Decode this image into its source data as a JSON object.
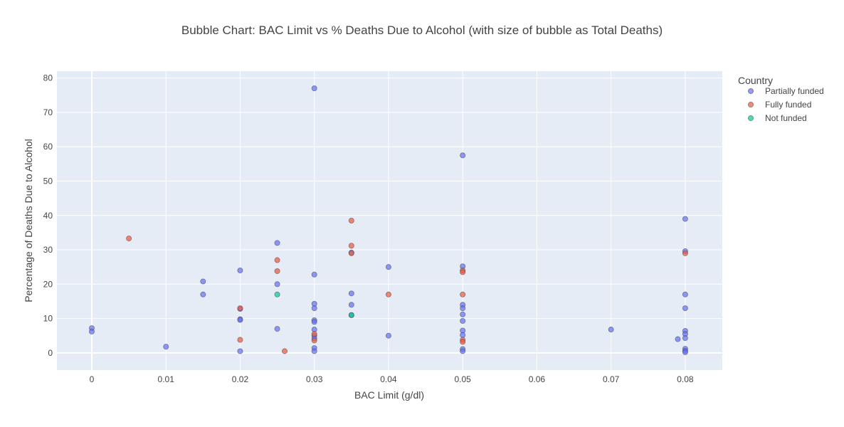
{
  "chart_data": {
    "type": "scatter",
    "title": "Bubble Chart: BAC Limit vs % Deaths Due to Alcohol (with size of bubble as Total Deaths)",
    "xlabel": "BAC Limit (g/dl)",
    "ylabel": "Percentage of Deaths Due to Alcohol",
    "xlim": [
      -0.0047,
      0.085
    ],
    "ylim": [
      -5,
      82
    ],
    "x_ticks": [
      0,
      0.01,
      0.02,
      0.03,
      0.04,
      0.05,
      0.06,
      0.07,
      0.08
    ],
    "x_tick_labels": [
      "0",
      "0.01",
      "0.02",
      "0.03",
      "0.04",
      "0.05",
      "0.06",
      "0.07",
      "0.08"
    ],
    "y_ticks": [
      0,
      10,
      20,
      30,
      40,
      50,
      60,
      70,
      80
    ],
    "y_tick_labels": [
      "0",
      "10",
      "20",
      "30",
      "40",
      "50",
      "60",
      "70",
      "80"
    ],
    "grid": true,
    "legend": {
      "title": "Country",
      "placement": "right"
    },
    "series": [
      {
        "name": "Partially funded",
        "color": "#636efa",
        "points": [
          [
            0,
            7.2
          ],
          [
            0,
            6.2
          ],
          [
            0.01,
            1.8
          ],
          [
            0.015,
            20.8
          ],
          [
            0.015,
            17.0
          ],
          [
            0.02,
            24.0
          ],
          [
            0.02,
            12.8
          ],
          [
            0.02,
            9.8
          ],
          [
            0.02,
            9.6
          ],
          [
            0.02,
            0.5
          ],
          [
            0.025,
            32.0
          ],
          [
            0.025,
            20.0
          ],
          [
            0.025,
            7.0
          ],
          [
            0.03,
            77.0
          ],
          [
            0.03,
            22.8
          ],
          [
            0.03,
            14.3
          ],
          [
            0.03,
            13.0
          ],
          [
            0.03,
            9.5
          ],
          [
            0.03,
            9.0
          ],
          [
            0.03,
            6.8
          ],
          [
            0.03,
            5.0
          ],
          [
            0.03,
            4.2
          ],
          [
            0.03,
            1.4
          ],
          [
            0.03,
            0.5
          ],
          [
            0.035,
            29.2
          ],
          [
            0.035,
            17.3
          ],
          [
            0.035,
            14.0
          ],
          [
            0.035,
            11.0
          ],
          [
            0.04,
            25.0
          ],
          [
            0.04,
            5.0
          ],
          [
            0.05,
            57.5
          ],
          [
            0.05,
            25.2
          ],
          [
            0.05,
            14.0
          ],
          [
            0.05,
            13.0
          ],
          [
            0.05,
            11.2
          ],
          [
            0.05,
            9.3
          ],
          [
            0.05,
            6.5
          ],
          [
            0.05,
            5.2
          ],
          [
            0.05,
            1.1
          ],
          [
            0.05,
            0.5
          ],
          [
            0.07,
            6.8
          ],
          [
            0.079,
            4.0
          ],
          [
            0.08,
            39.0
          ],
          [
            0.08,
            29.6
          ],
          [
            0.08,
            17.0
          ],
          [
            0.08,
            13.0
          ],
          [
            0.08,
            6.4
          ],
          [
            0.08,
            5.5
          ],
          [
            0.08,
            4.3
          ],
          [
            0.08,
            1.2
          ],
          [
            0.08,
            0.6
          ],
          [
            0.08,
            0.2
          ]
        ]
      },
      {
        "name": "Fully funded",
        "color": "#ef553b",
        "points": [
          [
            0.005,
            33.3
          ],
          [
            0.02,
            13.0
          ],
          [
            0.02,
            3.8
          ],
          [
            0.025,
            27.0
          ],
          [
            0.025,
            23.8
          ],
          [
            0.026,
            0.5
          ],
          [
            0.03,
            5.5
          ],
          [
            0.03,
            3.6
          ],
          [
            0.035,
            38.5
          ],
          [
            0.035,
            31.2
          ],
          [
            0.035,
            29.0
          ],
          [
            0.04,
            17.0
          ],
          [
            0.05,
            24.0
          ],
          [
            0.05,
            23.5
          ],
          [
            0.05,
            17.0
          ],
          [
            0.05,
            3.8
          ],
          [
            0.05,
            3.2
          ],
          [
            0.08,
            29.0
          ]
        ]
      },
      {
        "name": "Not funded",
        "color": "#00cc96",
        "points": [
          [
            0.025,
            17.0
          ],
          [
            0.035,
            11.0
          ]
        ]
      }
    ]
  }
}
